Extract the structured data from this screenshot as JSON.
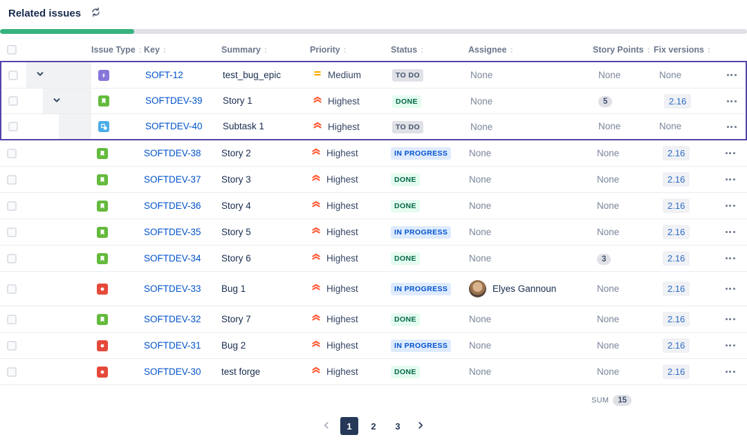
{
  "header": {
    "title": "Related issues"
  },
  "progress": {
    "percent": 18
  },
  "colors": {
    "accent_purple": "#5243AA",
    "progress_green": "#36B37E",
    "progress_track": "#DFE1E6",
    "link_blue": "#0052CC",
    "types": {
      "epic": "#8777D9",
      "story": "#63BA3C",
      "bug": "#E5493A",
      "subtask": "#4BADE8"
    },
    "priority": {
      "Highest": "#FF5630",
      "Medium": "#FFAB00"
    },
    "status": {
      "TO DO": {
        "bg": "#DFE1E6",
        "text": "#42526E"
      },
      "DONE": {
        "bg": "#E3FCEF",
        "text": "#006644"
      },
      "IN PROGRESS": {
        "bg": "#DEEBFF",
        "text": "#0052CC"
      }
    }
  },
  "table": {
    "columns": [
      {
        "label": "Issue Type"
      },
      {
        "label": "Key"
      },
      {
        "label": "Summary"
      },
      {
        "label": "Priority"
      },
      {
        "label": "Status"
      },
      {
        "label": "Assignee"
      },
      {
        "label": "Story Points"
      },
      {
        "label": "Fix versions"
      }
    ],
    "sort_glyph": ":",
    "rows": [
      {
        "key": "SOFT-12",
        "type": "epic",
        "summary": "test_bug_epic",
        "priority": "Medium",
        "status": "TO DO",
        "assignee": "None",
        "story_points": "None",
        "fix_versions": "None",
        "in_group": true,
        "indent": 0,
        "expandable": true
      },
      {
        "key": "SOFTDEV-39",
        "type": "story",
        "summary": "Story 1",
        "priority": "Highest",
        "status": "DONE",
        "assignee": "None",
        "story_points": "5",
        "fix_versions": "2.16",
        "in_group": true,
        "indent": 1,
        "expandable": true
      },
      {
        "key": "SOFTDEV-40",
        "type": "subtask",
        "summary": "Subtask 1",
        "priority": "Highest",
        "status": "TO DO",
        "assignee": "None",
        "story_points": "None",
        "fix_versions": "None",
        "in_group": true,
        "indent": 2,
        "expandable": false
      },
      {
        "key": "SOFTDEV-38",
        "type": "story",
        "summary": "Story 2",
        "priority": "Highest",
        "status": "IN PROGRESS",
        "assignee": "None",
        "story_points": "None",
        "fix_versions": "2.16"
      },
      {
        "key": "SOFTDEV-37",
        "type": "story",
        "summary": "Story 3",
        "priority": "Highest",
        "status": "DONE",
        "assignee": "None",
        "story_points": "None",
        "fix_versions": "2.16"
      },
      {
        "key": "SOFTDEV-36",
        "type": "story",
        "summary": "Story 4",
        "priority": "Highest",
        "status": "DONE",
        "assignee": "None",
        "story_points": "None",
        "fix_versions": "2.16"
      },
      {
        "key": "SOFTDEV-35",
        "type": "story",
        "summary": "Story 5",
        "priority": "Highest",
        "status": "IN PROGRESS",
        "assignee": "None",
        "story_points": "None",
        "fix_versions": "2.16"
      },
      {
        "key": "SOFTDEV-34",
        "type": "story",
        "summary": "Story 6",
        "priority": "Highest",
        "status": "DONE",
        "assignee": "None",
        "story_points": "3",
        "fix_versions": "2.16"
      },
      {
        "key": "SOFTDEV-33",
        "type": "bug",
        "summary": "Bug 1",
        "priority": "Highest",
        "status": "IN PROGRESS",
        "assignee": {
          "name": "Elyes Gannoun",
          "has_avatar": true
        },
        "story_points": "None",
        "fix_versions": "2.16"
      },
      {
        "key": "SOFTDEV-32",
        "type": "story",
        "summary": "Story 7",
        "priority": "Highest",
        "status": "DONE",
        "assignee": "None",
        "story_points": "None",
        "fix_versions": "2.16"
      },
      {
        "key": "SOFTDEV-31",
        "type": "bug",
        "summary": "Bug 2",
        "priority": "Highest",
        "status": "IN PROGRESS",
        "assignee": "None",
        "story_points": "None",
        "fix_versions": "2.16"
      },
      {
        "key": "SOFTDEV-30",
        "type": "bug",
        "summary": "test forge",
        "priority": "Highest",
        "status": "DONE",
        "assignee": "None",
        "story_points": "None",
        "fix_versions": "2.16"
      }
    ]
  },
  "footer": {
    "sum_label": "SUM",
    "sum_value": "15",
    "pagination": {
      "pages": [
        "1",
        "2",
        "3"
      ],
      "active_page": "1",
      "prev_enabled": false,
      "next_enabled": true
    }
  }
}
